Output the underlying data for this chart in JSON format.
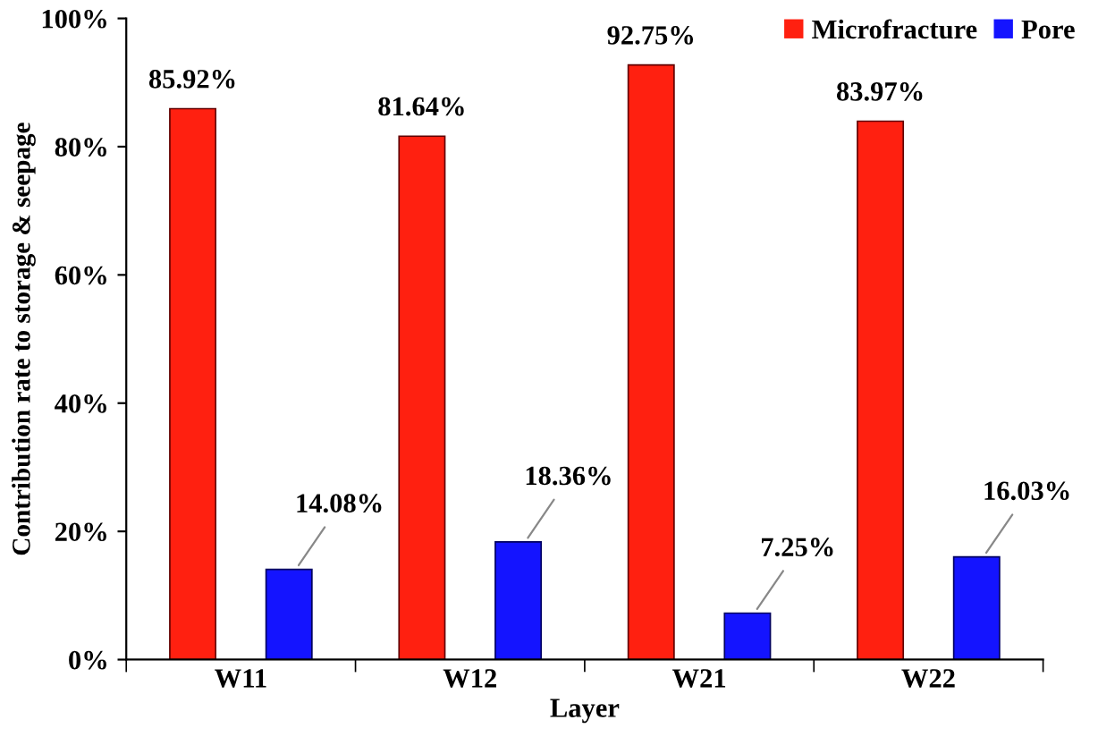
{
  "chart_data": {
    "type": "bar",
    "xlabel": "Layer",
    "ylabel": "Contribution rate to storage & seepage",
    "categories": [
      "W11",
      "W12",
      "W21",
      "W22"
    ],
    "series": [
      {
        "name": "Microfracture",
        "color": "#ff2010",
        "values": [
          85.92,
          81.64,
          92.75,
          83.97
        ],
        "value_labels": [
          "85.92%",
          "81.64%",
          "92.75%",
          "83.97%"
        ]
      },
      {
        "name": "Pore",
        "color": "#1414ff",
        "values": [
          14.08,
          18.36,
          7.25,
          16.03
        ],
        "value_labels": [
          "14.08%",
          "18.36%",
          "7.25%",
          "16.03%"
        ]
      }
    ],
    "ylim": [
      0,
      100
    ],
    "yticks": [
      {
        "value": 0,
        "label": "0%"
      },
      {
        "value": 20,
        "label": "20%"
      },
      {
        "value": 40,
        "label": "40%"
      },
      {
        "value": 60,
        "label": "60%"
      },
      {
        "value": 80,
        "label": "80%"
      },
      {
        "value": 100,
        "label": "100%"
      }
    ],
    "grid": false,
    "legend": "top right"
  }
}
